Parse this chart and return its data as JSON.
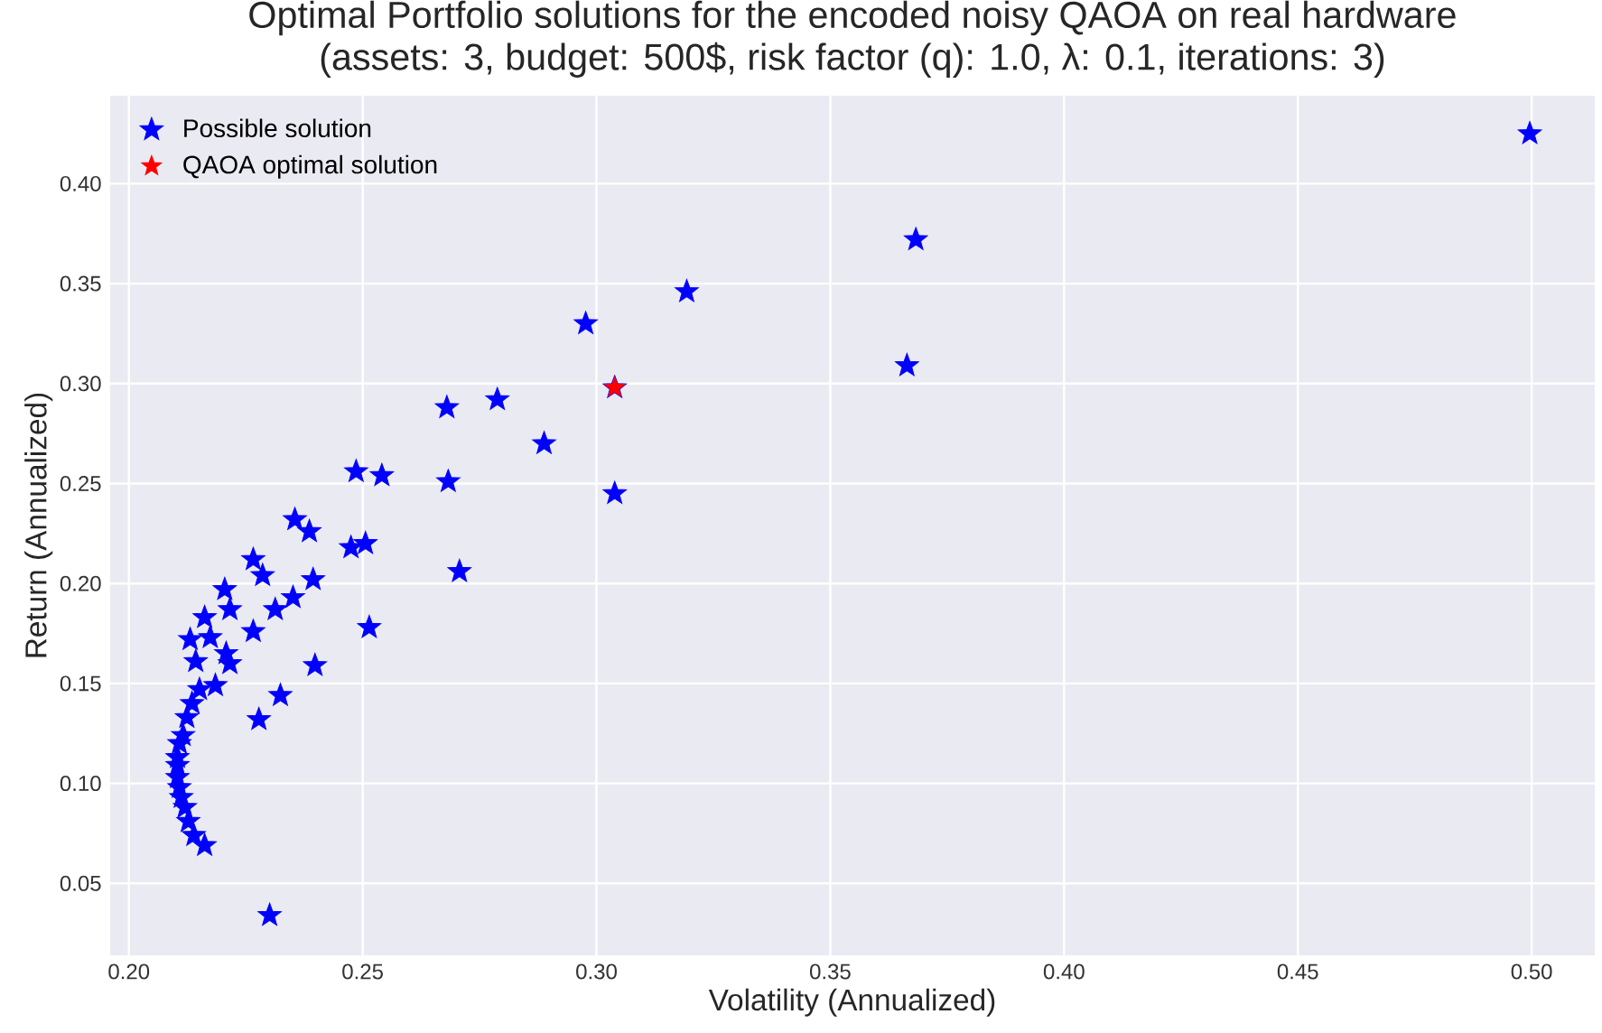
{
  "chart_data": {
    "type": "scatter",
    "title": "Optimal Portfolio solutions for the encoded noisy QAOA on real hardware",
    "subtitle": "(assets: 3, budget: 500$, risk factor (q): 1.0, λ: 0.1, iterations: 3)",
    "xlabel": "Volatility (Annualized)",
    "ylabel": "Return (Annualized)",
    "xlim": [
      0.196,
      0.5135
    ],
    "ylim": [
      0.014,
      0.444
    ],
    "xticks": [
      {
        "value": 0.2,
        "label": "0.20"
      },
      {
        "value": 0.25,
        "label": "0.25"
      },
      {
        "value": 0.3,
        "label": "0.30"
      },
      {
        "value": 0.35,
        "label": "0.35"
      },
      {
        "value": 0.4,
        "label": "0.40"
      },
      {
        "value": 0.45,
        "label": "0.45"
      },
      {
        "value": 0.5,
        "label": "0.50"
      }
    ],
    "yticks": [
      {
        "value": 0.05,
        "label": "0.05"
      },
      {
        "value": 0.1,
        "label": "0.10"
      },
      {
        "value": 0.15,
        "label": "0.15"
      },
      {
        "value": 0.2,
        "label": "0.20"
      },
      {
        "value": 0.25,
        "label": "0.25"
      },
      {
        "value": 0.3,
        "label": "0.30"
      },
      {
        "value": 0.35,
        "label": "0.35"
      },
      {
        "value": 0.4,
        "label": "0.40"
      }
    ],
    "grid": true,
    "legend": "top left",
    "marker": "star",
    "series": [
      {
        "name": "Possible solution",
        "color": "#0000ff",
        "x": [
          0.4996,
          0.3683,
          0.3193,
          0.2977,
          0.3664,
          0.3039,
          0.2788,
          0.268,
          0.2888,
          0.3039,
          0.2486,
          0.2541,
          0.2683,
          0.2355,
          0.2386,
          0.2475,
          0.2506,
          0.2707,
          0.2266,
          0.2286,
          0.2394,
          0.2205,
          0.2351,
          0.2313,
          0.2162,
          0.2216,
          0.2514,
          0.2131,
          0.2174,
          0.2266,
          0.2208,
          0.2216,
          0.2143,
          0.2398,
          0.2185,
          0.2151,
          0.2324,
          0.2135,
          0.2124,
          0.2278,
          0.2116,
          0.2108,
          0.2104,
          0.2104,
          0.2104,
          0.2108,
          0.2112,
          0.212,
          0.2127,
          0.2139,
          0.2162,
          0.2301
        ],
        "values": [
          0.425,
          0.372,
          0.346,
          0.33,
          0.309,
          0.298,
          0.292,
          0.288,
          0.27,
          0.245,
          0.256,
          0.254,
          0.251,
          0.232,
          0.226,
          0.218,
          0.22,
          0.206,
          0.212,
          0.204,
          0.202,
          0.197,
          0.193,
          0.187,
          0.183,
          0.187,
          0.178,
          0.172,
          0.173,
          0.176,
          0.165,
          0.16,
          0.161,
          0.159,
          0.149,
          0.147,
          0.144,
          0.14,
          0.133,
          0.132,
          0.124,
          0.12,
          0.113,
          0.109,
          0.103,
          0.098,
          0.093,
          0.088,
          0.081,
          0.074,
          0.069,
          0.034
        ]
      },
      {
        "name": "QAOA optimal solution",
        "color": "#ff0000",
        "x": [
          0.3039
        ],
        "values": [
          0.298
        ]
      }
    ]
  }
}
